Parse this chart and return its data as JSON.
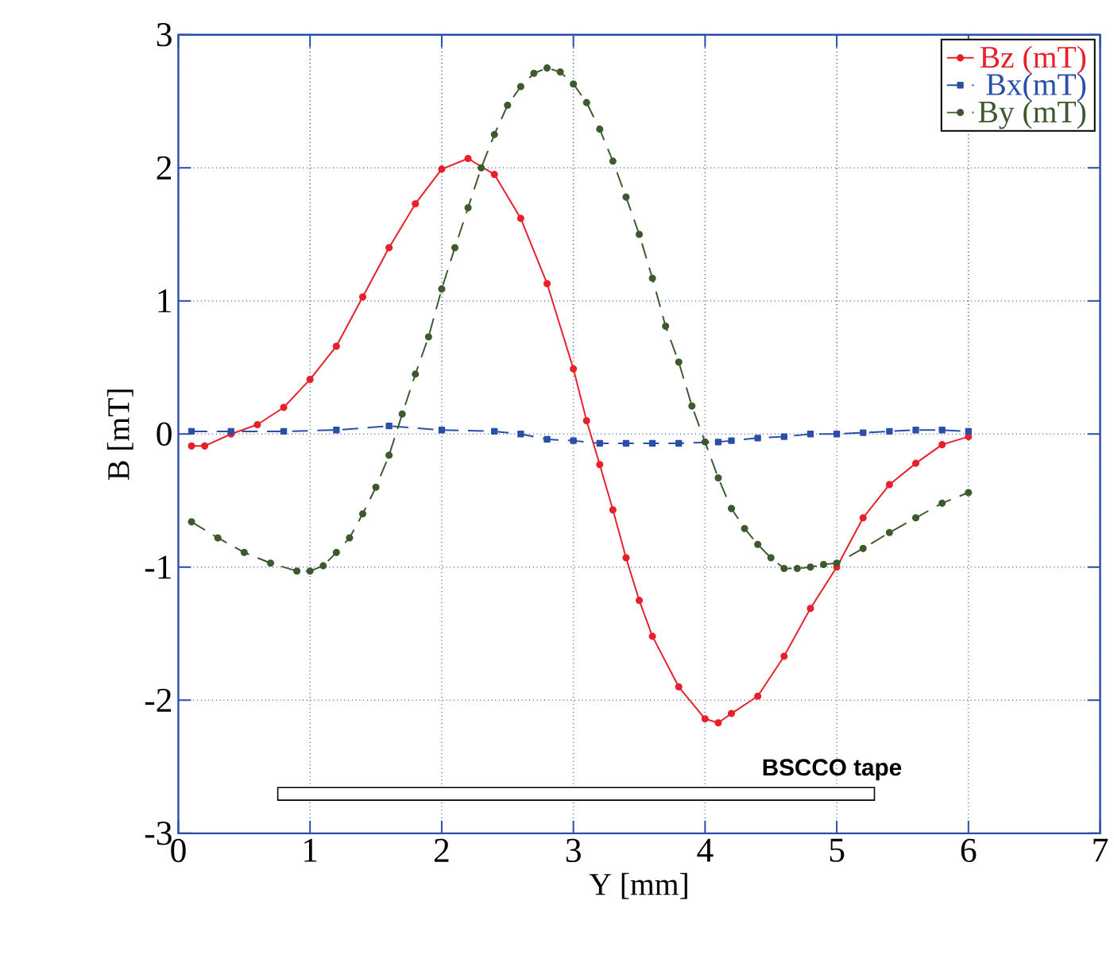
{
  "chart_data": {
    "type": "line",
    "xlabel": "Y [mm]",
    "ylabel": "B [mT]",
    "xlim": [
      0,
      7
    ],
    "ylim": [
      -3,
      3
    ],
    "xticks": [
      0,
      1,
      2,
      3,
      4,
      5,
      6,
      7
    ],
    "yticks": [
      -3,
      -2,
      -1,
      0,
      1,
      2,
      3
    ],
    "grid": true,
    "legend": "top right",
    "annotations": [
      "BSCCO tape"
    ],
    "series": [
      {
        "name": "Bz (mT)",
        "color": "#e8202a",
        "marker": "circle",
        "line_style": "solid",
        "x": [
          0.1,
          0.2,
          0.4,
          0.6,
          0.8,
          1.0,
          1.2,
          1.4,
          1.6,
          1.8,
          2.0,
          2.2,
          2.4,
          2.6,
          2.8,
          3.0,
          3.1,
          3.2,
          3.3,
          3.4,
          3.5,
          3.6,
          3.8,
          4.0,
          4.1,
          4.2,
          4.4,
          4.6,
          4.8,
          5.0,
          5.2,
          5.4,
          5.6,
          5.8,
          6.0
        ],
        "values": [
          -0.09,
          -0.09,
          0.0,
          0.07,
          0.2,
          0.41,
          0.66,
          1.03,
          1.4,
          1.73,
          1.99,
          2.07,
          1.95,
          1.62,
          1.13,
          0.49,
          0.1,
          -0.23,
          -0.57,
          -0.93,
          -1.25,
          -1.52,
          -1.9,
          -2.14,
          -2.17,
          -2.1,
          -1.97,
          -1.67,
          -1.31,
          -1.0,
          -0.63,
          -0.38,
          -0.22,
          -0.08,
          -0.02
        ]
      },
      {
        "name": "Bx(mT)",
        "color": "#2a4fa8",
        "marker": "square",
        "line_style": "dashed",
        "x": [
          0.1,
          0.4,
          0.8,
          1.2,
          1.6,
          2.0,
          2.4,
          2.6,
          2.8,
          3.0,
          3.2,
          3.4,
          3.6,
          3.8,
          4.1,
          4.2,
          4.4,
          4.6,
          4.8,
          5.0,
          5.2,
          5.4,
          5.6,
          5.8,
          6.0
        ],
        "values": [
          0.02,
          0.02,
          0.02,
          0.03,
          0.06,
          0.03,
          0.02,
          0.0,
          -0.04,
          -0.05,
          -0.07,
          -0.07,
          -0.07,
          -0.07,
          -0.06,
          -0.05,
          -0.03,
          -0.02,
          0.0,
          0.0,
          0.01,
          0.02,
          0.03,
          0.03,
          0.02
        ]
      },
      {
        "name": "By (mT)",
        "color": "#3d5a2e",
        "marker": "circle",
        "line_style": "dashed",
        "x": [
          0.1,
          0.3,
          0.5,
          0.7,
          0.9,
          1.0,
          1.1,
          1.2,
          1.3,
          1.4,
          1.5,
          1.6,
          1.7,
          1.8,
          1.9,
          2.0,
          2.1,
          2.2,
          2.3,
          2.4,
          2.5,
          2.6,
          2.7,
          2.8,
          2.9,
          3.0,
          3.1,
          3.2,
          3.3,
          3.4,
          3.5,
          3.6,
          3.7,
          3.8,
          3.9,
          4.0,
          4.1,
          4.2,
          4.3,
          4.4,
          4.5,
          4.6,
          4.7,
          4.8,
          4.9,
          5.0,
          5.2,
          5.4,
          5.6,
          5.8,
          6.0
        ],
        "values": [
          -0.66,
          -0.78,
          -0.89,
          -0.97,
          -1.03,
          -1.03,
          -0.99,
          -0.89,
          -0.78,
          -0.6,
          -0.4,
          -0.16,
          0.15,
          0.45,
          0.73,
          1.09,
          1.4,
          1.7,
          2.0,
          2.25,
          2.47,
          2.61,
          2.71,
          2.75,
          2.72,
          2.63,
          2.49,
          2.29,
          2.05,
          1.78,
          1.5,
          1.17,
          0.81,
          0.54,
          0.21,
          -0.06,
          -0.33,
          -0.56,
          -0.71,
          -0.83,
          -0.93,
          -1.01,
          -1.01,
          -1.0,
          -0.98,
          -0.97,
          -0.86,
          -0.74,
          -0.63,
          -0.52,
          -0.44
        ]
      }
    ]
  }
}
